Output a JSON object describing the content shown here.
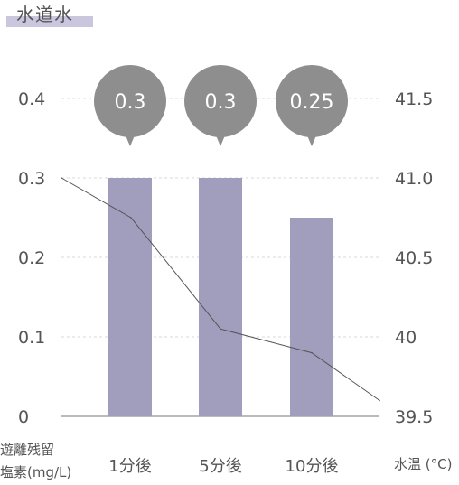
{
  "legend_label": "水道水",
  "left_axis_note": [
    "遊離残留",
    "塩素(mg/L)"
  ],
  "right_axis_note": "水温 (°C)",
  "chart_data": {
    "type": "bar",
    "title": "",
    "categories": [
      "1分後",
      "5分後",
      "10分後"
    ],
    "series": [
      {
        "name": "水道水",
        "axis": "left",
        "type": "bar",
        "values": [
          0.3,
          0.3,
          0.25
        ],
        "color": "#a09dbd"
      },
      {
        "axis": "right",
        "type": "line",
        "x": [
          0,
          1,
          2,
          3,
          4
        ],
        "values": [
          41.0,
          40.75,
          40.05,
          39.9,
          39.6
        ],
        "color": "#555555"
      }
    ],
    "data_labels": [
      "0.3",
      "0.3",
      "0.25"
    ],
    "y_left": {
      "ticks": [
        "0",
        "0.1",
        "0.2",
        "0.3",
        "0.4"
      ],
      "lim": [
        0,
        0.4
      ]
    },
    "y_right": {
      "ticks": [
        "39.5",
        "40",
        "40.5",
        "41.0",
        "41.5"
      ],
      "lim": [
        39.5,
        41.5
      ]
    },
    "grid": true,
    "bubble_color": "#8e8e8e"
  }
}
